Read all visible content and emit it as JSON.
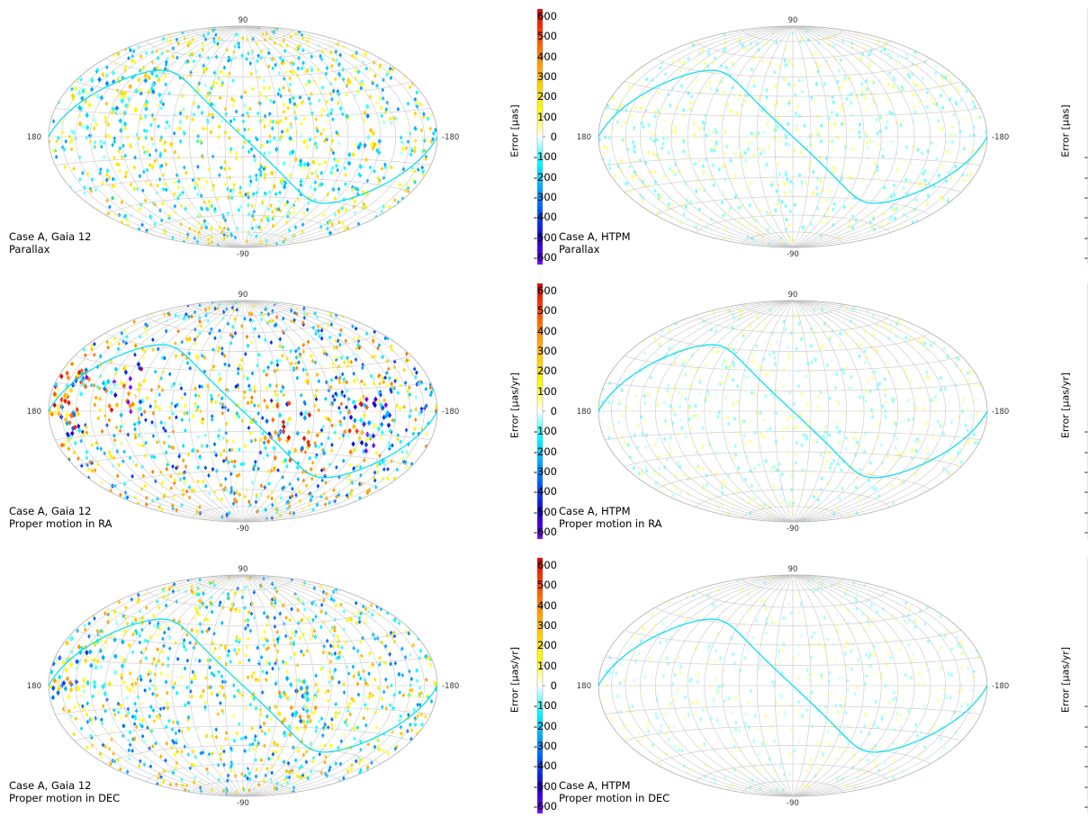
{
  "colorbar": {
    "ticks": [
      "600",
      "500",
      "400",
      "300",
      "200",
      "100",
      "0",
      "-100",
      "-200",
      "-300",
      "-400",
      "-500",
      "-600"
    ],
    "range": [
      -600,
      600
    ],
    "colors": [
      "#7a00ff",
      "#1a00c8",
      "#0048ff",
      "#00a8ff",
      "#00ffff",
      "#ffffff",
      "#ffff00",
      "#ffd000",
      "#ff9000",
      "#ff4000",
      "#e00000"
    ]
  },
  "map_labels": {
    "top": "90",
    "bottom": "-90",
    "left": "180",
    "right": "-180"
  },
  "panels": [
    {
      "case": "Case A, Gaia 12",
      "quantity": "Parallax",
      "cb_label": "Error [µas]"
    },
    {
      "case": "Case A, HTPM",
      "quantity": "Parallax",
      "cb_label": "Error [µas]"
    },
    {
      "case": "Case A, Gaia 12",
      "quantity": "Proper motion in RA",
      "cb_label": "Error [µas/yr]"
    },
    {
      "case": "Case A, HTPM",
      "quantity": "Proper motion in RA",
      "cb_label": "Error [µas/yr]"
    },
    {
      "case": "Case A, Gaia 12",
      "quantity": "Proper motion in DEC",
      "cb_label": "Error [µas/yr]"
    },
    {
      "case": "Case A, HTPM",
      "quantity": "Proper motion in DEC",
      "cb_label": "Error [µas/yr]"
    }
  ],
  "chart_data": [
    {
      "type": "heatmap",
      "projection": "hammer (sky map)",
      "case": "Case A, Gaia 12",
      "quantity": "Parallax",
      "colorbar_label": "Error [µas]",
      "colorbar_range": [
        -600,
        600
      ],
      "longitude_labels": [
        "180",
        "-180"
      ],
      "latitude_labels": [
        "90",
        "-90"
      ],
      "grid": true,
      "ecliptic_curve": true,
      "noise_level": 0.45,
      "patches": [
        {
          "lon": 150,
          "lat": 22,
          "amp": 250
        },
        {
          "lon": 100,
          "lat": 25,
          "amp": 250
        },
        {
          "lon": -40,
          "lat": -18,
          "amp": 200
        },
        {
          "lon": -105,
          "lat": 0,
          "amp": 250
        }
      ]
    },
    {
      "type": "heatmap",
      "projection": "hammer (sky map)",
      "case": "Case A, HTPM",
      "quantity": "Parallax",
      "colorbar_label": "Error [µas]",
      "colorbar_range": [
        -600,
        600
      ],
      "longitude_labels": [
        "180",
        "-180"
      ],
      "latitude_labels": [
        "90",
        "-90"
      ],
      "grid": true,
      "ecliptic_curve": true,
      "noise_level": 0.12,
      "patches": []
    },
    {
      "type": "heatmap",
      "projection": "hammer (sky map)",
      "case": "Case A, Gaia 12",
      "quantity": "Proper motion in RA",
      "colorbar_label": "Error [µas/yr]",
      "colorbar_range": [
        -600,
        600
      ],
      "longitude_labels": [
        "180",
        "-180"
      ],
      "latitude_labels": [
        "90",
        "-90"
      ],
      "grid": true,
      "ecliptic_curve": true,
      "noise_level": 0.7,
      "patches": [
        {
          "lon": 160,
          "lat": 5,
          "amp": 550
        },
        {
          "lon": 105,
          "lat": 15,
          "amp": 550
        },
        {
          "lon": -40,
          "lat": -15,
          "amp": 500
        },
        {
          "lon": -110,
          "lat": -10,
          "amp": 550
        }
      ]
    },
    {
      "type": "heatmap",
      "projection": "hammer (sky map)",
      "case": "Case A, HTPM",
      "quantity": "Proper motion in RA",
      "colorbar_label": "Error [µas/yr]",
      "colorbar_range": [
        -600,
        600
      ],
      "longitude_labels": [
        "180",
        "-180"
      ],
      "latitude_labels": [
        "90",
        "-90"
      ],
      "grid": true,
      "ecliptic_curve": true,
      "noise_level": 0.1,
      "patches": []
    },
    {
      "type": "heatmap",
      "projection": "hammer (sky map)",
      "case": "Case A, Gaia 12",
      "quantity": "Proper motion in DEC",
      "colorbar_label": "Error [µas/yr]",
      "colorbar_range": [
        -600,
        600
      ],
      "longitude_labels": [
        "180",
        "-180"
      ],
      "latitude_labels": [
        "90",
        "-90"
      ],
      "grid": true,
      "ecliptic_curve": true,
      "noise_level": 0.55,
      "patches": [
        {
          "lon": 165,
          "lat": 8,
          "amp": 350
        },
        {
          "lon": 125,
          "lat": 15,
          "amp": 200
        },
        {
          "lon": -45,
          "lat": -15,
          "amp": 300
        }
      ]
    },
    {
      "type": "heatmap",
      "projection": "hammer (sky map)",
      "case": "Case A, HTPM",
      "quantity": "Proper motion in DEC",
      "colorbar_label": "Error [µas/yr]",
      "colorbar_range": [
        -600,
        600
      ],
      "longitude_labels": [
        "180",
        "-180"
      ],
      "latitude_labels": [
        "90",
        "-90"
      ],
      "grid": true,
      "ecliptic_curve": true,
      "noise_level": 0.08,
      "patches": []
    }
  ]
}
